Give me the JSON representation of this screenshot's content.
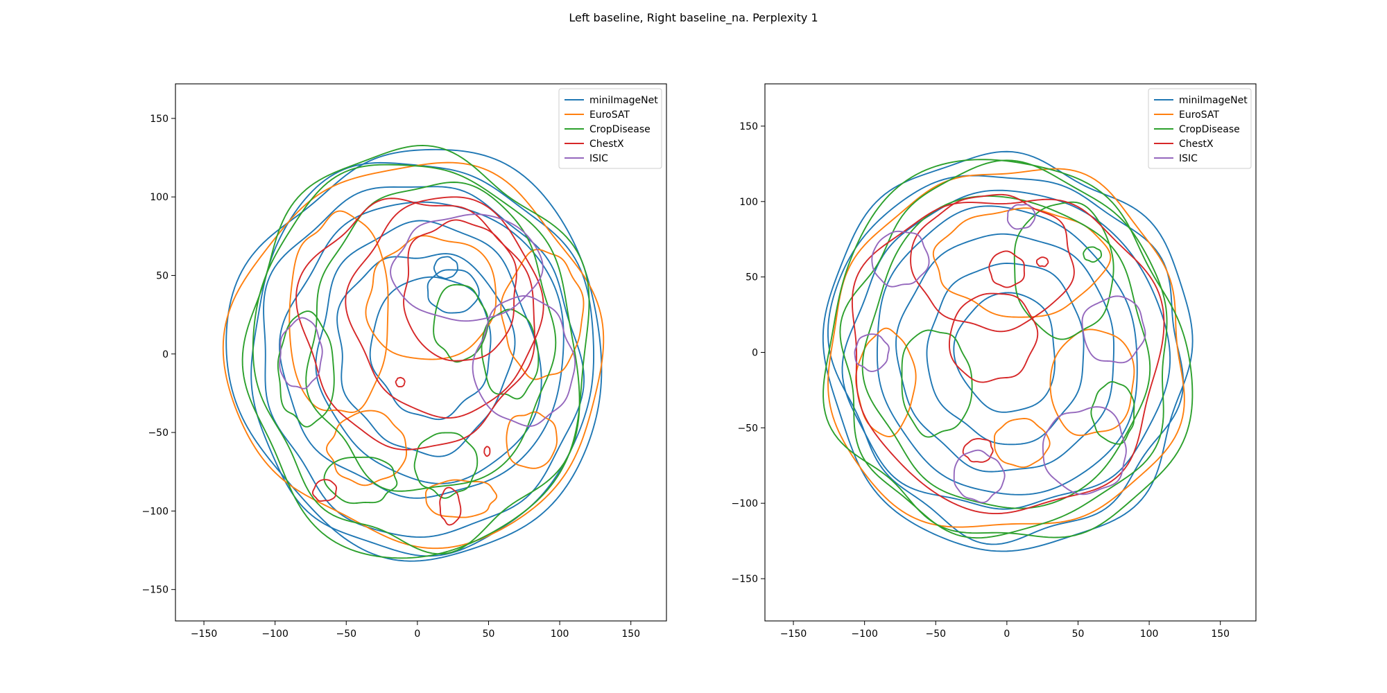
{
  "figure": {
    "title": "Left baseline, Right baseline_na. Perplexity 1"
  },
  "chart_data": [
    {
      "type": "line",
      "subtitle": "baseline",
      "xlim": [
        -170,
        175
      ],
      "ylim": [
        -170,
        172
      ],
      "xticks": [
        -150,
        -100,
        -50,
        0,
        50,
        100,
        150
      ],
      "yticks": [
        -150,
        -100,
        -50,
        0,
        50,
        100,
        150
      ],
      "legend_position": "top-right",
      "grid": false,
      "series": [
        {
          "name": "miniImageNet",
          "color": "#1f77b4",
          "contours": [
            {
              "cx": 2,
              "cy": 0,
              "rx": 130,
              "ry": 130,
              "seed": 1
            },
            {
              "cx": 2,
              "cy": -2,
              "rx": 122,
              "ry": 124,
              "seed": 2
            },
            {
              "cx": 2,
              "cy": -4,
              "rx": 110,
              "ry": 113,
              "seed": 3
            },
            {
              "cx": 5,
              "cy": 3,
              "rx": 95,
              "ry": 98,
              "seed": 4
            },
            {
              "cx": 8,
              "cy": 0,
              "rx": 78,
              "ry": 82,
              "seed": 5
            },
            {
              "cx": 5,
              "cy": 2,
              "rx": 60,
              "ry": 65,
              "seed": 6
            },
            {
              "cx": 10,
              "cy": 5,
              "rx": 42,
              "ry": 45,
              "seed": 7
            },
            {
              "cx": 25,
              "cy": 40,
              "rx": 18,
              "ry": 14,
              "seed": 8
            },
            {
              "cx": 20,
              "cy": 55,
              "rx": 8,
              "ry": 7,
              "seed": 9
            }
          ]
        },
        {
          "name": "EuroSAT",
          "color": "#ff7f0e",
          "contours": [
            {
              "cx": 0,
              "cy": 0,
              "rx": 126,
              "ry": 125,
              "seed": 11
            },
            {
              "cx": -55,
              "cy": 25,
              "rx": 35,
              "ry": 65,
              "seed": 12
            },
            {
              "cx": 88,
              "cy": 25,
              "rx": 28,
              "ry": 40,
              "seed": 13
            },
            {
              "cx": 80,
              "cy": -55,
              "rx": 18,
              "ry": 18,
              "seed": 14
            },
            {
              "cx": 30,
              "cy": -92,
              "rx": 25,
              "ry": 12,
              "seed": 15
            },
            {
              "cx": -35,
              "cy": -60,
              "rx": 28,
              "ry": 22,
              "seed": 16
            },
            {
              "cx": 10,
              "cy": 35,
              "rx": 45,
              "ry": 40,
              "seed": 17
            }
          ]
        },
        {
          "name": "CropDisease",
          "color": "#2ca02c",
          "contours": [
            {
              "cx": 0,
              "cy": 0,
              "rx": 123,
              "ry": 127,
              "seed": 21
            },
            {
              "cx": 0,
              "cy": 0,
              "rx": 115,
              "ry": 120,
              "seed": 22
            },
            {
              "cx": 10,
              "cy": 10,
              "rx": 88,
              "ry": 95,
              "seed": 23
            },
            {
              "cx": -78,
              "cy": -10,
              "rx": 20,
              "ry": 35,
              "seed": 24
            },
            {
              "cx": -40,
              "cy": -80,
              "rx": 25,
              "ry": 15,
              "seed": 25
            },
            {
              "cx": 20,
              "cy": -70,
              "rx": 22,
              "ry": 20,
              "seed": 26
            },
            {
              "cx": 65,
              "cy": 0,
              "rx": 20,
              "ry": 28,
              "seed": 27
            },
            {
              "cx": 30,
              "cy": 20,
              "rx": 18,
              "ry": 25,
              "seed": 28
            }
          ]
        },
        {
          "name": "ChestX",
          "color": "#d62728",
          "contours": [
            {
              "cx": 20,
              "cy": 30,
              "rx": 65,
              "ry": 70,
              "seed": 31
            },
            {
              "cx": 30,
              "cy": 40,
              "rx": 40,
              "ry": 45,
              "seed": 32
            },
            {
              "cx": 0,
              "cy": 20,
              "rx": 80,
              "ry": 80,
              "seed": 33
            },
            {
              "cx": -65,
              "cy": -87,
              "rx": 8,
              "ry": 7,
              "seed": 34
            },
            {
              "cx": 23,
              "cy": -97,
              "rx": 7,
              "ry": 12,
              "seed": 35
            },
            {
              "cx": -12,
              "cy": -18,
              "rx": 3,
              "ry": 3,
              "seed": 36
            },
            {
              "cx": 49,
              "cy": -62,
              "rx": 2,
              "ry": 3,
              "seed": 37
            }
          ]
        },
        {
          "name": "ISIC",
          "color": "#9467bd",
          "contours": [
            {
              "cx": 35,
              "cy": 55,
              "rx": 50,
              "ry": 35,
              "seed": 41
            },
            {
              "cx": -82,
              "cy": 0,
              "rx": 15,
              "ry": 22,
              "seed": 42
            },
            {
              "cx": 75,
              "cy": -5,
              "rx": 35,
              "ry": 40,
              "seed": 43
            }
          ]
        }
      ]
    },
    {
      "type": "line",
      "subtitle": "baseline_na",
      "xlim": [
        -170,
        175
      ],
      "ylim": [
        -178,
        178
      ],
      "xticks": [
        -150,
        -100,
        -50,
        0,
        50,
        100,
        150
      ],
      "yticks": [
        -150,
        -100,
        -50,
        0,
        50,
        100,
        150
      ],
      "legend_position": "top-right",
      "grid": false,
      "series": [
        {
          "name": "miniImageNet",
          "color": "#1f77b4",
          "contours": [
            {
              "cx": 0,
              "cy": 0,
              "rx": 130,
              "ry": 130,
              "seed": 51
            },
            {
              "cx": 0,
              "cy": 0,
              "rx": 120,
              "ry": 122,
              "seed": 52
            },
            {
              "cx": 0,
              "cy": 0,
              "rx": 108,
              "ry": 110,
              "seed": 53
            },
            {
              "cx": 0,
              "cy": 0,
              "rx": 92,
              "ry": 95,
              "seed": 54
            },
            {
              "cx": 0,
              "cy": 0,
              "rx": 75,
              "ry": 80,
              "seed": 55
            },
            {
              "cx": 0,
              "cy": 0,
              "rx": 55,
              "ry": 60,
              "seed": 56
            },
            {
              "cx": 0,
              "cy": 0,
              "rx": 35,
              "ry": 40,
              "seed": 57
            }
          ]
        },
        {
          "name": "EuroSAT",
          "color": "#ff7f0e",
          "contours": [
            {
              "cx": 0,
              "cy": 0,
              "rx": 125,
              "ry": 122,
              "seed": 61
            },
            {
              "cx": 10,
              "cy": 60,
              "rx": 60,
              "ry": 35,
              "seed": 62
            },
            {
              "cx": -85,
              "cy": -20,
              "rx": 20,
              "ry": 35,
              "seed": 63
            },
            {
              "cx": 60,
              "cy": -20,
              "rx": 30,
              "ry": 35,
              "seed": 64
            },
            {
              "cx": 10,
              "cy": -60,
              "rx": 20,
              "ry": 15,
              "seed": 65
            }
          ]
        },
        {
          "name": "CropDisease",
          "color": "#2ca02c",
          "contours": [
            {
              "cx": 0,
              "cy": 0,
              "rx": 128,
              "ry": 125,
              "seed": 71
            },
            {
              "cx": 0,
              "cy": 0,
              "rx": 118,
              "ry": 118,
              "seed": 72
            },
            {
              "cx": 0,
              "cy": 0,
              "rx": 100,
              "ry": 102,
              "seed": 73
            },
            {
              "cx": 40,
              "cy": 55,
              "rx": 35,
              "ry": 45,
              "seed": 74
            },
            {
              "cx": 75,
              "cy": -40,
              "rx": 15,
              "ry": 20,
              "seed": 75
            },
            {
              "cx": -50,
              "cy": -20,
              "rx": 25,
              "ry": 35,
              "seed": 76
            },
            {
              "cx": 60,
              "cy": 65,
              "rx": 6,
              "ry": 5,
              "seed": 77
            }
          ]
        },
        {
          "name": "ChestX",
          "color": "#d62728",
          "contours": [
            {
              "cx": 0,
              "cy": 0,
              "rx": 110,
              "ry": 105,
              "seed": 81
            },
            {
              "cx": -10,
              "cy": 60,
              "rx": 55,
              "ry": 45,
              "seed": 82
            },
            {
              "cx": -10,
              "cy": 10,
              "rx": 30,
              "ry": 30,
              "seed": 83
            },
            {
              "cx": 0,
              "cy": 55,
              "rx": 12,
              "ry": 12,
              "seed": 84
            },
            {
              "cx": -20,
              "cy": -65,
              "rx": 10,
              "ry": 8,
              "seed": 85
            },
            {
              "cx": 25,
              "cy": 60,
              "rx": 4,
              "ry": 3,
              "seed": 86
            }
          ]
        },
        {
          "name": "ISIC",
          "color": "#9467bd",
          "contours": [
            {
              "cx": -75,
              "cy": 62,
              "rx": 20,
              "ry": 18,
              "seed": 91
            },
            {
              "cx": -95,
              "cy": 0,
              "rx": 12,
              "ry": 12,
              "seed": 92
            },
            {
              "cx": 75,
              "cy": 15,
              "rx": 22,
              "ry": 22,
              "seed": 93
            },
            {
              "cx": 55,
              "cy": -65,
              "rx": 30,
              "ry": 28,
              "seed": 94
            },
            {
              "cx": -20,
              "cy": -82,
              "rx": 18,
              "ry": 16,
              "seed": 95
            },
            {
              "cx": 10,
              "cy": 90,
              "rx": 10,
              "ry": 8,
              "seed": 96
            }
          ]
        }
      ]
    }
  ]
}
